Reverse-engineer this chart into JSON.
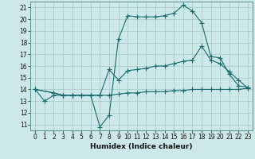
{
  "xlabel": "Humidex (Indice chaleur)",
  "bg_color": "#cce8e8",
  "grid_color": "#aacccc",
  "line_color": "#1a6b6b",
  "xlim": [
    -0.5,
    23.5
  ],
  "ylim": [
    10.5,
    21.5
  ],
  "yticks": [
    11,
    12,
    13,
    14,
    15,
    16,
    17,
    18,
    19,
    20,
    21
  ],
  "xticks": [
    0,
    1,
    2,
    3,
    4,
    5,
    6,
    7,
    8,
    9,
    10,
    11,
    12,
    13,
    14,
    15,
    16,
    17,
    18,
    19,
    20,
    21,
    22,
    23
  ],
  "line_max": {
    "x": [
      0,
      1,
      2,
      3,
      4,
      5,
      6,
      7,
      8,
      9,
      10,
      11,
      12,
      13,
      14,
      15,
      16,
      17,
      18,
      19,
      20,
      21,
      22,
      23
    ],
    "y": [
      14,
      13,
      13.5,
      13.5,
      13.5,
      13.5,
      13.5,
      10.8,
      11.8,
      18.3,
      20.3,
      20.2,
      20.2,
      20.2,
      20.3,
      20.5,
      21.2,
      20.7,
      19.7,
      16.8,
      16.7,
      15.3,
      14.3,
      14.2
    ]
  },
  "line_mean": {
    "x": [
      0,
      2,
      3,
      4,
      5,
      6,
      7,
      8,
      9,
      10,
      11,
      12,
      13,
      14,
      15,
      16,
      17,
      18,
      19,
      20,
      21,
      22,
      23
    ],
    "y": [
      14,
      13.7,
      13.5,
      13.5,
      13.5,
      13.5,
      13.5,
      15.7,
      14.8,
      15.6,
      15.7,
      15.8,
      16.0,
      16.0,
      16.2,
      16.4,
      16.5,
      17.7,
      16.5,
      16.2,
      15.5,
      14.8,
      14.1
    ]
  },
  "line_min": {
    "x": [
      0,
      2,
      3,
      4,
      5,
      6,
      7,
      8,
      9,
      10,
      11,
      12,
      13,
      14,
      15,
      16,
      17,
      18,
      19,
      20,
      21,
      22,
      23
    ],
    "y": [
      14,
      13.7,
      13.5,
      13.5,
      13.5,
      13.5,
      13.5,
      13.5,
      13.6,
      13.7,
      13.7,
      13.8,
      13.8,
      13.8,
      13.9,
      13.9,
      14.0,
      14.0,
      14.0,
      14.0,
      14.0,
      14.0,
      14.1
    ]
  }
}
